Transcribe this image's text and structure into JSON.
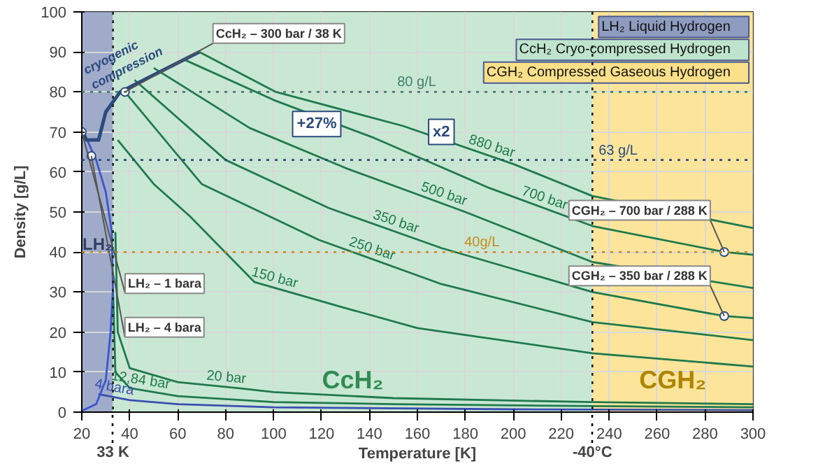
{
  "chart_data": {
    "type": "line",
    "xlabel": "Temperature [K]",
    "ylabel": "Density [g/L]",
    "xlim": [
      20,
      300
    ],
    "ylim": [
      0,
      100
    ],
    "xticks": [
      20,
      40,
      60,
      80,
      100,
      120,
      140,
      160,
      180,
      200,
      220,
      240,
      260,
      280,
      300
    ],
    "yticks": [
      0,
      10,
      20,
      30,
      40,
      50,
      60,
      70,
      80,
      90,
      100
    ],
    "grid": true,
    "marker": "none",
    "line_style": "solid",
    "series": [
      {
        "name": "880 bar",
        "color": "#1f7a4d",
        "x": [
          69,
          101,
          154,
          200,
          233,
          300
        ],
        "values": [
          90,
          80,
          71.5,
          62,
          54,
          46
        ]
      },
      {
        "name": "700 bar",
        "color": "#1f7a4d",
        "x": [
          63,
          100,
          142,
          190,
          233,
          288,
          300
        ],
        "values": [
          88,
          78,
          68.5,
          56,
          46.5,
          40,
          39.3
        ]
      },
      {
        "name": "500 bar",
        "color": "#1f7a4d",
        "x": [
          50,
          90,
          130,
          180,
          233,
          300
        ],
        "values": [
          86,
          71,
          61,
          50,
          37.5,
          31
        ]
      },
      {
        "name": "350 bar",
        "color": "#1f7a4d",
        "x": [
          42,
          80,
          123,
          170,
          233,
          288,
          300
        ],
        "values": [
          83,
          63,
          51,
          41,
          30,
          24,
          23.5
        ]
      },
      {
        "name": "250 bar",
        "color": "#1f7a4d",
        "x": [
          38,
          70,
          119,
          170,
          233,
          300
        ],
        "values": [
          80,
          57,
          43,
          32,
          22.5,
          18
        ]
      },
      {
        "name": "150 bar",
        "color": "#1f7a4d",
        "x": [
          35,
          50,
          65,
          92,
          130,
          160,
          233,
          300
        ],
        "values": [
          68,
          57,
          49,
          32.5,
          26,
          21,
          14.7,
          11.4
        ]
      },
      {
        "name": "20 bar",
        "color": "#1f7a4d",
        "x": [
          34,
          35,
          40,
          60,
          85,
          100,
          150,
          233,
          300
        ],
        "values": [
          45,
          20,
          11,
          7.5,
          6,
          5,
          3.5,
          2.5,
          2
        ]
      },
      {
        "name": "12,84 bar",
        "color": "#1f7a4d",
        "x": [
          33,
          34,
          40,
          60,
          100,
          150,
          233,
          300
        ],
        "values": [
          31,
          10,
          6,
          4,
          2.5,
          2,
          1.5,
          1.2
        ]
      },
      {
        "name": "4 bara",
        "color": "#3a4fb0",
        "x": [
          27,
          40,
          60,
          100,
          200,
          300
        ],
        "values": [
          4.5,
          3,
          2,
          1.2,
          0.7,
          0.5
        ]
      },
      {
        "color": "#3a55d0",
        "x": [
          20,
          26,
          30,
          32,
          33,
          32.5,
          30,
          26,
          23,
          20
        ],
        "values": [
          0.3,
          2,
          8,
          20,
          31,
          45,
          55,
          63,
          67,
          71
        ]
      },
      {
        "color": "#2b4a7e",
        "x": [
          20,
          22,
          27,
          30,
          36,
          69
        ],
        "values": [
          70,
          68,
          68,
          75,
          80,
          90
        ]
      }
    ],
    "bands": [
      {
        "axis": "x",
        "from": 20,
        "to": 33,
        "label": "LH₂",
        "color": "#8e9cc0"
      },
      {
        "axis": "x",
        "from": 33,
        "to": 233,
        "label": "CcH₂",
        "color": "#bfe4cd"
      },
      {
        "axis": "x",
        "from": 233,
        "to": 300,
        "label": "CGH₂",
        "color": "#fbe08a"
      }
    ],
    "ref_lines": [
      {
        "axis": "y",
        "value": 80,
        "label": "80 g/L",
        "color": "#3e7f6a",
        "line_style": "dotted"
      },
      {
        "axis": "y",
        "value": 63,
        "label": "63 g/L",
        "color": "#2b4a7e",
        "line_style": "dotted"
      },
      {
        "axis": "y",
        "value": 40,
        "label": "40g/L",
        "color": "#c98a1a",
        "line_style": "dotted"
      },
      {
        "axis": "x",
        "value": 33,
        "label": "33 K",
        "color": "#222222",
        "line_style": "dotted"
      },
      {
        "axis": "x",
        "value": 233,
        "label": "-40°C",
        "color": "#222222",
        "line_style": "dotted"
      }
    ],
    "annotations": [
      {
        "text": "LH₂ – 1 bara",
        "x": 20,
        "y": 70
      },
      {
        "text": "LH₂ – 4 bara",
        "x": 24,
        "y": 64
      },
      {
        "text": "CcH₂ – 300 bar / 38 K",
        "x": 38,
        "y": 80
      },
      {
        "text": "CGH₂ – 700 bar / 288 K",
        "x": 288,
        "y": 40
      },
      {
        "text": "CGH₂ – 350 bar / 288 K",
        "x": 288,
        "y": 24
      },
      {
        "text": "+27%",
        "x": 118,
        "y": 72
      },
      {
        "text": "x2",
        "x": 170,
        "y": 70
      },
      "Liquid Hydrogen",
      "Cryo-compressed Hydrogen",
      "Compressed Gaseous Hydrogen",
      "cryogenic compression"
    ]
  }
}
